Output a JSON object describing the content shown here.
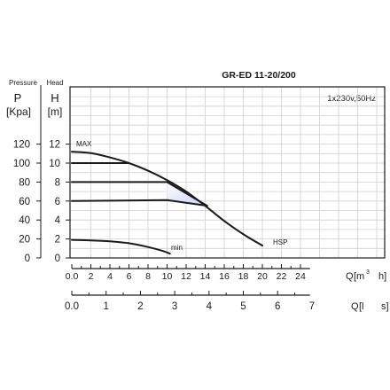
{
  "chart_data": {
    "type": "line",
    "title": "GR-ED 11-20/200",
    "annotation": "1x230v,50Hz",
    "left_axes": {
      "pressure": {
        "caption": "Pressure",
        "symbol": "P",
        "unit": "[Kpa]",
        "ticks": [
          "0",
          "20",
          "40",
          "60",
          "80",
          "100",
          "120"
        ],
        "values": [
          0,
          20,
          40,
          60,
          80,
          100,
          120
        ]
      },
      "head": {
        "caption": "Head",
        "symbol": "H",
        "unit": "[m]",
        "ticks": [
          "0",
          "2",
          "4",
          "6",
          "8",
          "10",
          "12"
        ],
        "values": [
          0,
          2,
          4,
          6,
          8,
          10,
          12
        ],
        "ylim": [
          0,
          20
        ]
      }
    },
    "x_axes": {
      "flow_m3h": {
        "symbol": "Q",
        "unit_parts": [
          "[m",
          "3",
          "h]"
        ],
        "ticks": [
          "0.0",
          "2",
          "4",
          "6",
          "8",
          "10",
          "12",
          "14",
          "16",
          "18",
          "20",
          "22",
          "24"
        ],
        "values": [
          0,
          2,
          4,
          6,
          8,
          10,
          12,
          14,
          16,
          18,
          20,
          22,
          24
        ],
        "xlim": [
          0,
          28
        ]
      },
      "flow_ls": {
        "symbol": "Q",
        "unit_parts": [
          "[l",
          "s]"
        ],
        "ticks": [
          "0.0",
          "1",
          "2",
          "3",
          "4",
          "5",
          "6",
          "7"
        ],
        "values": [
          0,
          1,
          2,
          3,
          4,
          5,
          6,
          7
        ]
      }
    },
    "series": [
      {
        "name": "MAX",
        "points": [
          [
            0,
            11.2
          ],
          [
            2,
            11.05
          ],
          [
            4,
            10.6
          ],
          [
            6,
            10.0
          ],
          [
            8,
            9.2
          ],
          [
            10,
            8.2
          ],
          [
            12,
            7.0
          ],
          [
            14,
            5.5
          ],
          [
            16,
            3.9
          ],
          [
            18,
            2.5
          ],
          [
            20,
            1.3
          ]
        ]
      },
      {
        "name": "",
        "points": [
          [
            0,
            10
          ],
          [
            6,
            10
          ]
        ]
      },
      {
        "name": "",
        "points": [
          [
            0,
            8
          ],
          [
            10,
            8
          ],
          [
            14.2,
            5.5
          ]
        ]
      },
      {
        "name": "",
        "points": [
          [
            0,
            6
          ],
          [
            10,
            6.1
          ],
          [
            14.2,
            5.5
          ]
        ]
      },
      {
        "name": "min",
        "points": [
          [
            0,
            1.9
          ],
          [
            2,
            1.85
          ],
          [
            4,
            1.75
          ],
          [
            6,
            1.55
          ],
          [
            8,
            1.15
          ],
          [
            9.5,
            0.75
          ],
          [
            10.3,
            0.45
          ]
        ]
      }
    ],
    "curve_labels": {
      "max": "MAX",
      "hsp": "HSP",
      "min": "min"
    },
    "shaded_region": [
      [
        10,
        8
      ],
      [
        14.2,
        5.5
      ],
      [
        10,
        6.1
      ]
    ],
    "grid": true,
    "colors": {
      "line": "#1a1a1a",
      "grid": "#d0d0d0",
      "shade": "#c9cef3"
    }
  }
}
